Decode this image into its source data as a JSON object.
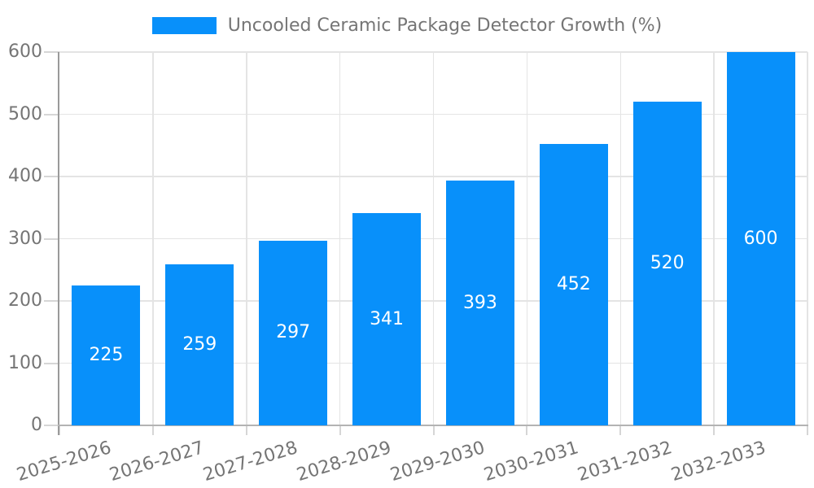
{
  "chart_data": {
    "type": "bar",
    "title": "",
    "legend_entries": [
      "Uncooled Ceramic Package Detector Growth (%)"
    ],
    "legend_position": "top",
    "categories": [
      "2025-2026",
      "2026-2027",
      "2027-2028",
      "2028-2029",
      "2029-2030",
      "2030-2031",
      "2031-2032",
      "2032-2033"
    ],
    "values": [
      225,
      259,
      297,
      341,
      393,
      452,
      520,
      600
    ],
    "bar_value_labels": [
      "225",
      "259",
      "297",
      "341",
      "393",
      "452",
      "520",
      "600"
    ],
    "xlabel": "",
    "ylabel": "",
    "ylim": [
      0,
      600
    ],
    "ytick_interval": 100,
    "ytick_labels": [
      "0",
      "100",
      "200",
      "300",
      "400",
      "500",
      "600"
    ],
    "grid": "on",
    "x_tick_rotation_deg": -17,
    "colors": {
      "bar": "#0890fa",
      "bar_label_text": "#ffffff",
      "axis_text": "#757575",
      "legend_text": "#757575",
      "gridline": "#e4e4e4",
      "tick": "#d6d6d6",
      "axis_line_left": "#9a9a9a",
      "axis_line_bottom": "#b3b3b3",
      "background": "#ffffff"
    }
  }
}
